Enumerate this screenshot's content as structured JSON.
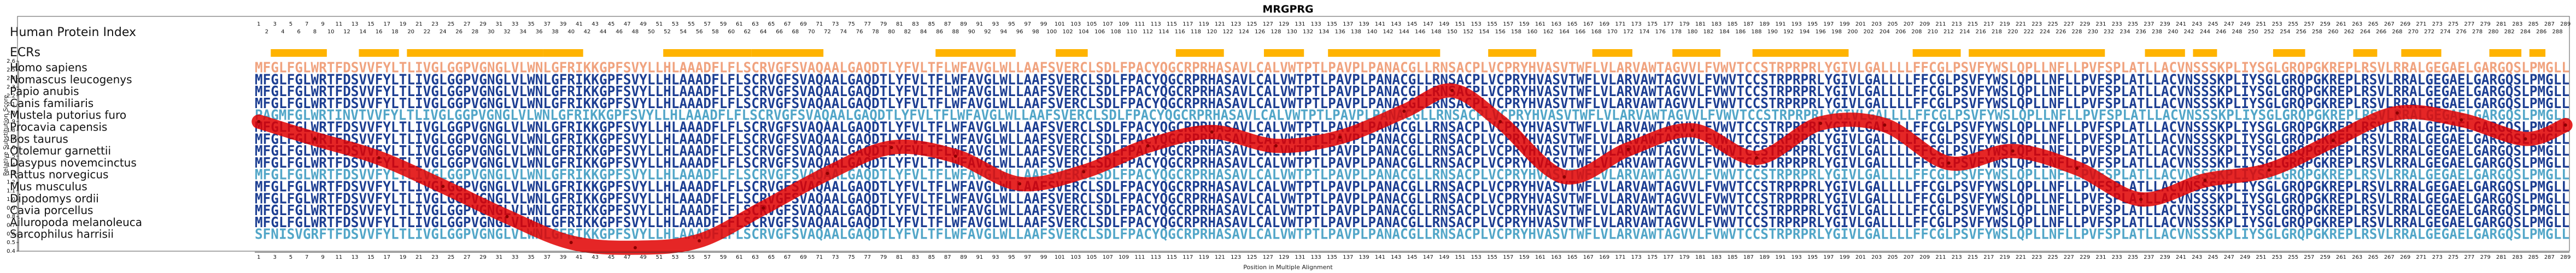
{
  "chart_data": {
    "type": "line",
    "title": "MRGPRG",
    "index_label": "Human Protein Index",
    "ecr_label": "ECRs",
    "ylabel": "Relative Substitution Score",
    "xlabel": "Position in Multiple Alignment",
    "ylim": [
      0.4,
      2.6
    ],
    "yticks": [
      0.4,
      0.5,
      0.6,
      0.7,
      0.8,
      0.9,
      1.0,
      1.1,
      1.2,
      1.3,
      1.4,
      1.5,
      1.6,
      1.7,
      1.8,
      1.9,
      2.0,
      2.1,
      2.2,
      2.3,
      2.4,
      2.5,
      2.6
    ],
    "human_index_max": 289,
    "alignment_length": 289,
    "species": [
      {
        "name": "Homo sapiens",
        "seq": "MFGLFGLWRTFDSVVFYLTLIVGLGGPVGNGLVLWNLGFRIKKGPFSVYLLHLAAADFLFLSCRVGFSVAQAALGAQDTLYFVLTFLWFAVGLWLLAAFSVERCLSDLFPACYQGCRPRHASAVLCALVWTPTLPAVPLPANACGLLRNSACPLVCPRYHVASVTWFLVLARVAWTAGVVLFVWVTCCSTRPRPRLYGIVLGALLLLFFCGLPSVFYWSLQPLLNFLLPVFSPLATLLACVNSSSKPLIYSGLGRQPGKREPLRSVLRRALGEGAELGARGQSLPMGLL"
      },
      {
        "name": "Nomascus leucogenys",
        "seq": "MFGLFGLWRTFDSVVFYLTLIVGLGGPVGNGLVLWNLGFRIKKGPFSVYLLHLAAADFLFLSCRVGFSVAQAALGAQDTLYFVLTFLWFAVGLWLLAAFSVERCLSDLFPACYQGCRPRHASAVLCALVWTPTLPAVPLPANACGLLRNSACPLVCPRYHVASVTWFLVLARVAWTAGVVLFVWVTCCSTRPRPRLYGIVLGALLLLFFCGLPSVFYWSLQPLLNFLLPVFSPLATLLACVNSSSKPLIYSGLGRQPGKREPLRSVLRRALGEGAELGARGQSLPMGLL"
      },
      {
        "name": "Papio anubis",
        "seq": "MFGLFGLWRTFDSVVFYLTLIVGLGGPVGNGLVLWNLGFRIKKGPFSVYLLHLAAADFLFLSCRVGFSVAQAALGAQDTLYFVLTFLWFAVGLWLLAAFSVERCLSDLFPACYQGCRPRHASAVLCALVWTPTLPAVPLPANACGLLRNSACPLVCPRYHVASVTWFLVLARVAWTAGVVLFVWVTCCSTRPRPRLYGIVLGALLLLFFCGLPSVFYWSLQPLLNFLLPVFSPLATLLACVNSSSKPLIYSGLGRQPGKREPLRSVLRRALGEGAELGARGQSLPMGLL"
      },
      {
        "name": "Canis familiaris",
        "seq": "MFGLFGLWRTFDSVVFYLTLIVGLGGPVGNGLVLWNLGFRIKKGPFSVYLLHLAAADFLFLSCRVGFSVAQAALGAQDTLYFVLTFLWFAVGLWLLAAFSVERCLSDLFPACYQGCRPRHASAVLCALVWTPTLPAVPLPANACGLLRNSACPLVCPRYHVASVTWFLVLARVAWTAGVVLFVWVTCCSTRPRPRLYGIVLGALLLLFFCGLPSVFYWSLQPLLNFLLPVFSPLATLLACVNSSSKPLIYSGLGRQPGKREPLRSVLRRALGEGAELGARGQSLPMGLL"
      },
      {
        "name": "Mustela putorius furo",
        "seq": "PAGMFGLWRTINVTVVFYLTLIVGLGGPVGNGLVLWNLGFRIKKGPFSVYLLHLAAADFLFLSCRVGFSVAQAALGAQDTLYFVLTFLWFAVGLWLLAAFSVERCLSDLFPACYQGCRPRHASAVLCALVWTPTLPAVPLPANACGLLRNSACPLVCPRYHVASVTWFLVLARVAWTAGVVLFVWVTCCSTRPRPRLYGIVLGALLLLFFCGLPSVFYWSLQPLLNFLLPVFSPLATLLACVNSSSKPLIYSGLGRQPGKREPLRSVLRRALGEGAELGARGQSLPMGLL"
      },
      {
        "name": "Procavia capensis",
        "seq": "MFGLFGLWRTFDSVVFYLTLIVGLGGPVGNGLVLWNLGFRIKKGPFSVYLLHLAAADFLFLSCRVGFSVAQAALGAQDTLYFVLTFLWFAVGLWLLAAFSVERCLSDLFPACYQGCRPRHASAVLCALVWTPTLPAVPLPANACGLLRNSACPLVCPRYHVASVTWFLVLARVAWTAGVVLFVWVTCCSTRPRPRLYGIVLGALLLLFFCGLPSVFYWSLQPLLNFLLPVFSPLATLLACVNSSSKPLIYSGLGRQPGKREPLRSVLRRALGEGAELGARGQSLPMGLL"
      },
      {
        "name": "Bos taurus",
        "seq": "MFGLFGLWRTFDSVVFYLTLIVGLGGPVGNGLVLWNLGFRIKKGPFSVYLLHLAAADFLFLSCRVGFSVAQAALGAQDTLYFVLTFLWFAVGLWLLAAFSVERCLSDLFPACYQGCRPRHASAVLCALVWTPTLPAVPLPANACGLLRNSACPLVCPRYHVASVTWFLVLARVAWTAGVVLFVWVTCCSTRPRPRLYGIVLGALLLLFFCGLPSVFYWSLQPLLNFLLPVFSPLATLLACVNSSSKPLIYSGLGRQPGKREPLRSVLRRALGEGAELGARGQSLPMGLL"
      },
      {
        "name": "Otolemur garnettii",
        "seq": "MFGLFGLWRTFDSVVFYLTLIVGLGGPVGNGLVLWNLGFRIKKGPFSVYLLHLAAADFLFLSCRVGFSVAQAALGAQDTLYFVLTFLWFAVGLWLLAAFSVERCLSDLFPACYQGCRPRHASAVLCALVWTPTLPAVPLPANACGLLRNSACPLVCPRYHVASVTWFLVLARVAWTAGVVLFVWVTCCSTRPRPRLYGIVLGALLLLFFCGLPSVFYWSLQPLLNFLLPVFSPLATLLACVNSSSKPLIYSGLGRQPGKREPLRSVLRRALGEGAELGARGQSLPMGLL"
      },
      {
        "name": "Dasypus novemcinctus",
        "seq": "MFGLFGLWRTFDSVVFYLTLIVGLGGPVGNGLVLWNLGFRIKKGPFSVYLLHLAAADFLFLSCRVGFSVAQAALGAQDTLYFVLTFLWFAVGLWLLAAFSVERCLSDLFPACYQGCRPRHASAVLCALVWTPTLPAVPLPANACGLLRNSACPLVCPRYHVASVTWFLVLARVAWTAGVVLFVWVTCCSTRPRPRLYGIVLGALLLLFFCGLPSVFYWSLQPLLNFLLPVFSPLATLLACVNSSSKPLIYSGLGRQPGKREPLRSVLRRALGEGAELGARGQSLPMGLL"
      },
      {
        "name": "Rattus norvegicus",
        "seq": "MFGLFGLWRTFDSVVFYLTLIVGLGGPVGNGLVLWNLGFRIKKGPFSVYLLHLAAADFLFLSCRVGFSVAQAALGAQDTLYFVLTFLWFAVGLWLLAAFSVERCLSDLFPACYQGCRPRHASAVLCALVWTPTLPAVPLPANACGLLRNSACPLVCPRYHVASVTWFLVLARVAWTAGVVLFVWVTCCSTRPRPRLYGIVLGALLLLFFCGLPSVFYWSLQPLLNFLLPVFSPLATLLACVNSSSKPLIYSGLGRQPGKREPLRSVLRRALGEGAELGARGQSLPMGLL"
      },
      {
        "name": "Mus musculus",
        "seq": "MFGLFGLWRTFDSVVFYLTLIVGLGGPVGNGLVLWNLGFRIKKGPFSVYLLHLAAADFLFLSCRVGFSVAQAALGAQDTLYFVLTFLWFAVGLWLLAAFSVERCLSDLFPACYQGCRPRHASAVLCALVWTPTLPAVPLPANACGLLRNSACPLVCPRYHVASVTWFLVLARVAWTAGVVLFVWVTCCSTRPRPRLYGIVLGALLLLFFCGLPSVFYWSLQPLLNFLLPVFSPLATLLACVNSSSKPLIYSGLGRQPGKREPLRSVLRRALGEGAELGARGQSLPMGLL"
      },
      {
        "name": "Dipodomys ordii",
        "seq": "MFGLFGLWRTFDSVVFYLTLIVGLGGPVGNGLVLWNLGFRIKKGPFSVYLLHLAAADFLFLSCRVGFSVAQAALGAQDTLYFVLTFLWFAVGLWLLAAFSVERCLSDLFPACYQGCRPRHASAVLCALVWTPTLPAVPLPANACGLLRNSACPLVCPRYHVASVTWFLVLARVAWTAGVVLFVWVTCCSTRPRPRLYGIVLGALLLLFFCGLPSVFYWSLQPLLNFLLPVFSPLATLLACVNSSSKPLIYSGLGRQPGKREPLRSVLRRALGEGAELGARGQSLPMGLL"
      },
      {
        "name": "Cavia porcellus",
        "seq": "MFGLFGLWRTFDSVVFYLTLIVGLGGPVGNGLVLWNLGFRIKKGPFSVYLLHLAAADFLFLSCRVGFSVAQAALGAQDTLYFVLTFLWFAVGLWLLAAFSVERCLSDLFPACYQGCRPRHASAVLCALVWTPTLPAVPLPANACGLLRNSACPLVCPRYHVASVTWFLVLARVAWTAGVVLFVWVTCCSTRPRPRLYGIVLGALLLLFFCGLPSVFYWSLQPLLNFLLPVFSPLATLLACVNSSSKPLIYSGLGRQPGKREPLRSVLRRALGEGAELGARGQSLPMGLL"
      },
      {
        "name": "Ailuropoda melanoleuca",
        "seq": "MFGLFGLWRTFDSVVFYLTLIVGLGGPVGNGLVLWNLGFRIKKGPFSVYLLHLAAADFLFLSCRVGFSVAQAALGAQDTLYFVLTFLWFAVGLWLLAAFSVERCLSDLFPACYQGCRPRHASAVLCALVWTPTLPAVPLPANACGLLRNSACPLVCPRYHVASVTWFLVLARVAWTAGVVLFVWVTCCSTRPRPRLYGIVLGALLLLFFCGLPSVFYWSLQPLLNFLLPVFSPLATLLACVNSSSKPLIYSGLGRQPGKREPLRSVLRRALGEGAELGARGQSLPMGLL"
      },
      {
        "name": "Sarcophilus harrisii",
        "seq": "SFNISVGRFTFDSVVFYLTLIVGLGGPVGNGLVLWNLGFRIKKGPFSVYLLHLAAADFLFLSCRVGFSVAQAALGAQDTLYFVLTFLWFAVGLWLLAAFSVERCLSDLFPACYQGCRPRHASAVLCALVWTPTLPAVPLPANACGLLRNSACPLVCPRYHVASVTWFLVLARVAWTAGVVLFVWVTCCSTRPRPRLYGIVLGALLLLFFCGLPSVFYWSLQPLLNFLLPVFSPLATLLACVNSSSKPLIYSGLGRQPGKREPLRSVLRRALGEGAELGARGQSLPMGLL"
      }
    ],
    "ecr_blocks": [
      [
        3,
        9
      ],
      [
        14,
        18
      ],
      [
        20,
        36
      ],
      [
        37,
        41
      ],
      [
        52,
        62
      ],
      [
        63,
        71
      ],
      [
        86,
        95
      ],
      [
        101,
        104
      ],
      [
        116,
        121
      ],
      [
        127,
        131
      ],
      [
        135,
        148
      ],
      [
        155,
        160
      ],
      [
        168,
        172
      ],
      [
        178,
        183
      ],
      [
        188,
        199
      ],
      [
        208,
        213
      ],
      [
        215,
        231
      ],
      [
        237,
        241
      ],
      [
        243,
        245
      ],
      [
        253,
        256
      ],
      [
        263,
        265
      ],
      [
        269,
        273
      ],
      [
        280,
        283
      ],
      [
        285,
        286
      ]
    ],
    "series": [
      {
        "x": [
          1,
          8,
          16,
          24,
          32,
          40,
          48,
          56,
          64,
          72,
          80,
          88,
          96,
          104,
          112,
          120,
          128,
          136,
          144,
          150,
          156,
          164,
          172,
          180,
          188,
          196,
          204,
          212,
          220,
          228,
          236,
          244,
          252,
          260,
          268,
          276,
          284,
          289
        ],
        "y": [
          1.9,
          1.7,
          1.48,
          1.15,
          0.8,
          0.5,
          0.44,
          0.52,
          0.9,
          1.3,
          1.6,
          1.5,
          1.18,
          1.32,
          1.62,
          1.78,
          1.62,
          1.72,
          2.02,
          2.26,
          1.9,
          1.26,
          1.58,
          1.8,
          1.48,
          1.88,
          1.86,
          1.42,
          1.56,
          1.36,
          1.0,
          1.22,
          1.34,
          1.68,
          2.0,
          1.92,
          1.7,
          1.86
        ]
      }
    ],
    "colors": {
      "ecr": "#ffb300",
      "line": "#e10000",
      "seq_default": "#1c3e92",
      "seq_weak": "#52a6c8",
      "seq_human": "#f0a37f"
    }
  }
}
